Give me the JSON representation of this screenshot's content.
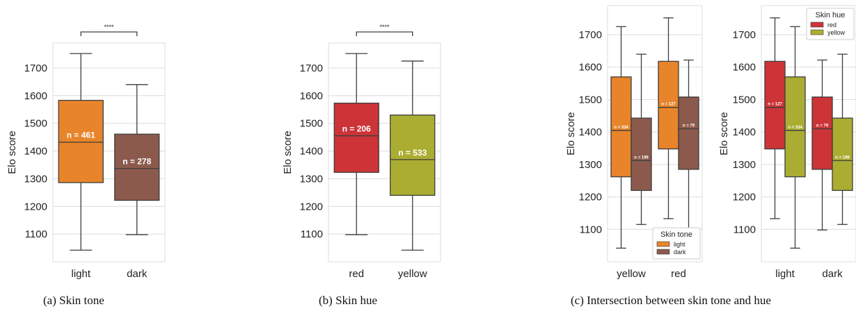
{
  "captions": {
    "a": "(a) Skin tone",
    "b": "(b) Skin hue",
    "c": "(c) Intersection between skin tone and hue"
  },
  "colors": {
    "light": "#e8842a",
    "dark": "#8c5a4d",
    "red": "#cc3438",
    "yellow": "#abad32",
    "line": "#3d3d3d",
    "grid": "#dcdcdc"
  },
  "chart_data": [
    {
      "id": "a",
      "type": "box",
      "ylabel": "Elo score",
      "ylim": [
        1000,
        1790
      ],
      "yticks": [
        1100,
        1200,
        1300,
        1400,
        1500,
        1600,
        1700
      ],
      "categories": [
        "light",
        "dark"
      ],
      "boxes": [
        {
          "category": "light",
          "color_key": "light",
          "min": 1042,
          "q1": 1286,
          "median": 1432,
          "q3": 1583,
          "max": 1752,
          "n_label": "n = 461"
        },
        {
          "category": "dark",
          "color_key": "dark",
          "min": 1098,
          "q1": 1222,
          "median": 1337,
          "q3": 1461,
          "max": 1640,
          "n_label": "n = 278"
        }
      ],
      "significance": "****"
    },
    {
      "id": "b",
      "type": "box",
      "ylabel": "Elo score",
      "ylim": [
        1000,
        1790
      ],
      "yticks": [
        1100,
        1200,
        1300,
        1400,
        1500,
        1600,
        1700
      ],
      "categories": [
        "red",
        "yellow"
      ],
      "boxes": [
        {
          "category": "red",
          "color_key": "red",
          "min": 1098,
          "q1": 1323,
          "median": 1455,
          "q3": 1573,
          "max": 1752,
          "n_label": "n = 206"
        },
        {
          "category": "yellow",
          "color_key": "yellow",
          "min": 1042,
          "q1": 1240,
          "median": 1369,
          "q3": 1530,
          "max": 1725,
          "n_label": "n = 533"
        }
      ],
      "significance": "****"
    },
    {
      "id": "c1",
      "type": "box",
      "ylabel": "Elo score",
      "ylim": [
        1000,
        1790
      ],
      "yticks": [
        1100,
        1200,
        1300,
        1400,
        1500,
        1600,
        1700
      ],
      "categories": [
        "yellow",
        "red"
      ],
      "legend": {
        "title": "Skin tone",
        "items": [
          {
            "label": "light",
            "color_key": "light"
          },
          {
            "label": "dark",
            "color_key": "dark"
          }
        ],
        "placement": "lower-right"
      },
      "boxes": [
        {
          "category": "yellow",
          "hue": "light",
          "color_key": "light",
          "min": 1042,
          "q1": 1262,
          "median": 1405,
          "q3": 1570,
          "max": 1725,
          "n_label": "n = 334"
        },
        {
          "category": "yellow",
          "hue": "dark",
          "color_key": "dark",
          "min": 1115,
          "q1": 1220,
          "median": 1312,
          "q3": 1443,
          "max": 1640,
          "n_label": "n = 199"
        },
        {
          "category": "red",
          "hue": "light",
          "color_key": "light",
          "min": 1133,
          "q1": 1348,
          "median": 1476,
          "q3": 1618,
          "max": 1752,
          "n_label": "n = 127"
        },
        {
          "category": "red",
          "hue": "dark",
          "color_key": "dark",
          "min": 1098,
          "q1": 1285,
          "median": 1410,
          "q3": 1508,
          "max": 1622,
          "n_label": "n = 79"
        }
      ]
    },
    {
      "id": "c2",
      "type": "box",
      "ylabel": "Elo score",
      "ylim": [
        1000,
        1790
      ],
      "yticks": [
        1100,
        1200,
        1300,
        1400,
        1500,
        1600,
        1700
      ],
      "categories": [
        "light",
        "dark"
      ],
      "legend": {
        "title": "Skin hue",
        "items": [
          {
            "label": "red",
            "color_key": "red"
          },
          {
            "label": "yellow",
            "color_key": "yellow"
          }
        ],
        "placement": "upper-right"
      },
      "boxes": [
        {
          "category": "light",
          "hue": "red",
          "color_key": "red",
          "min": 1133,
          "q1": 1348,
          "median": 1476,
          "q3": 1618,
          "max": 1752,
          "n_label": "n = 127"
        },
        {
          "category": "light",
          "hue": "yellow",
          "color_key": "yellow",
          "min": 1042,
          "q1": 1262,
          "median": 1405,
          "q3": 1570,
          "max": 1725,
          "n_label": "n = 334"
        },
        {
          "category": "dark",
          "hue": "red",
          "color_key": "red",
          "min": 1098,
          "q1": 1285,
          "median": 1410,
          "q3": 1508,
          "max": 1622,
          "n_label": "n = 79"
        },
        {
          "category": "dark",
          "hue": "yellow",
          "color_key": "yellow",
          "min": 1115,
          "q1": 1220,
          "median": 1312,
          "q3": 1443,
          "max": 1640,
          "n_label": "n = 199"
        }
      ]
    }
  ]
}
